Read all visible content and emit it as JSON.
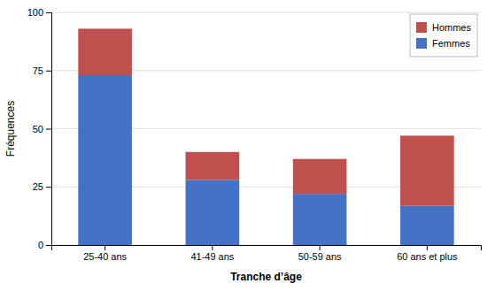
{
  "chart_data": {
    "type": "bar",
    "stacked": true,
    "x_label": "Tranche d’âge",
    "y_label": "Fréquences",
    "categories": [
      "25-40 ans",
      "41-49 ans",
      "50-59 ans",
      "60 ans et plus"
    ],
    "series": [
      {
        "name": "Femmes",
        "color": "#4472C4",
        "values": [
          73,
          28,
          22,
          17
        ]
      },
      {
        "name": "Hommes",
        "color": "#C0504D",
        "values": [
          20,
          12,
          15,
          30
        ]
      }
    ],
    "ylim": [
      0,
      100
    ],
    "yticks": [
      0,
      25,
      50,
      75,
      100
    ],
    "grid": true,
    "legend": "upper right"
  }
}
